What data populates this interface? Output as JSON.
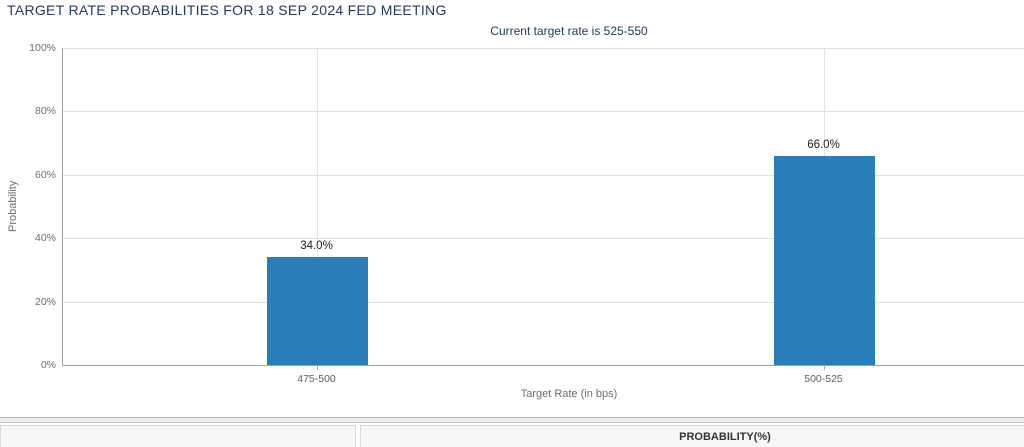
{
  "chart_data": {
    "type": "bar",
    "title": "TARGET RATE PROBABILITIES FOR 18 SEP 2024 FED MEETING",
    "subtitle": "Current target rate is 525-550",
    "categories": [
      "475-500",
      "500-525"
    ],
    "values": [
      34.0,
      66.0
    ],
    "value_labels": [
      "34.0%",
      "66.0%"
    ],
    "xlabel": "Target Rate (in bps)",
    "ylabel": "Probability",
    "ylim": [
      0,
      100
    ],
    "yticks": [
      0,
      20,
      40,
      60,
      80,
      100
    ],
    "ytick_labels": [
      "0%",
      "20%",
      "40%",
      "60%",
      "80%",
      "100%"
    ],
    "grid": true,
    "legend": false,
    "bar_color": "#2a7eb8"
  },
  "table": {
    "columns": [
      "",
      "PROBABILITY(%)"
    ]
  },
  "colors": {
    "title_text": "#223a5e",
    "bar": "#2a7eb8",
    "gridline": "#e0e0e0",
    "axis_line": "#a0a0a0",
    "tick_text": "#6e6e6e",
    "value_text": "#222222"
  }
}
